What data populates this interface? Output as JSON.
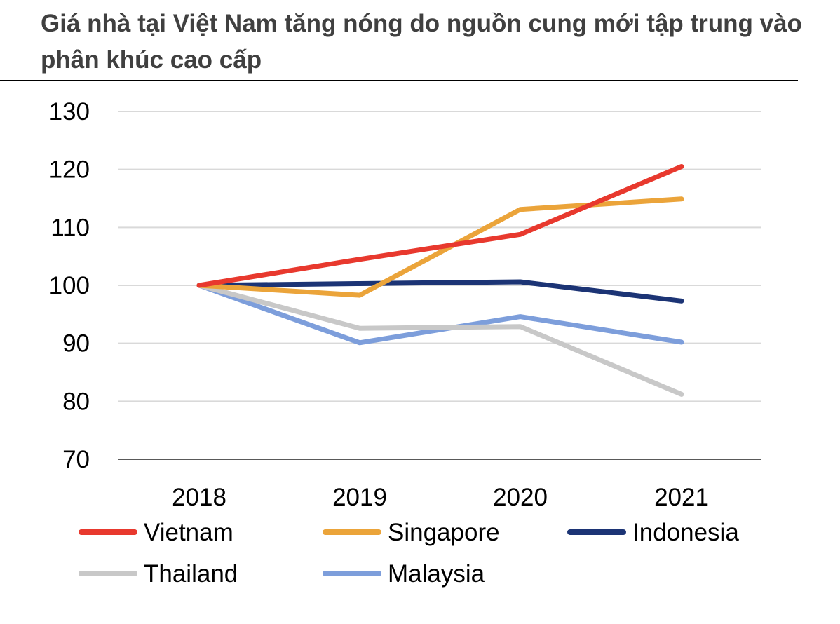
{
  "title": "Giá nhà tại Việt Nam tăng nóng do nguồn cung mới tập trung vào phân khúc cao cấp",
  "chart_data": {
    "type": "line",
    "title": "Giá nhà tại Việt Nam tăng nóng do nguồn cung mới tập trung vào phân khúc cao cấp",
    "xlabel": "",
    "ylabel": "",
    "categories": [
      "2018",
      "2019",
      "2020",
      "2021"
    ],
    "ylim": [
      70,
      130
    ],
    "yticks": [
      70,
      80,
      90,
      100,
      110,
      120,
      130
    ],
    "grid": true,
    "legend_position": "bottom",
    "series": [
      {
        "name": "Vietnam",
        "color": "#E8392E",
        "values": [
          100,
          104.5,
          108.8,
          120.5
        ]
      },
      {
        "name": "Singapore",
        "color": "#EBA43A",
        "values": [
          100,
          98.3,
          113.1,
          114.9
        ]
      },
      {
        "name": "Indonesia",
        "color": "#1C3475",
        "values": [
          100,
          100.3,
          100.6,
          97.3
        ]
      },
      {
        "name": "Thailand",
        "color": "#C8C8C8",
        "values": [
          100,
          92.6,
          92.9,
          81.2
        ]
      },
      {
        "name": "Malaysia",
        "color": "#7D9EDB",
        "values": [
          100,
          90.1,
          94.6,
          90.2
        ]
      }
    ]
  }
}
